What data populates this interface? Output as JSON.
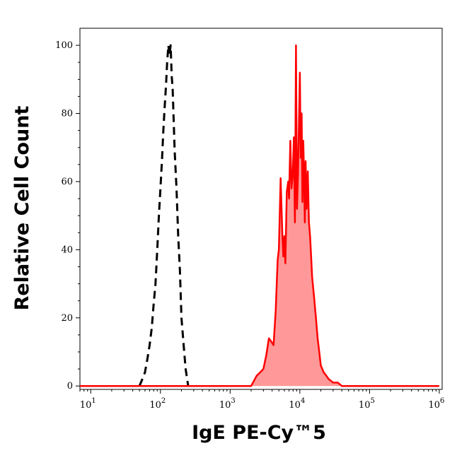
{
  "chart_data": {
    "type": "area",
    "title": "",
    "xlabel": "IgE PE-Cy™5",
    "ylabel": "Relative Cell Count",
    "x_scale": "log",
    "xlim": [
      7,
      1100000
    ],
    "ylim": [
      -1,
      105
    ],
    "grid": false,
    "legend": "none",
    "x_ticks": [
      {
        "base": "10",
        "exp": "1",
        "value": 10
      },
      {
        "base": "10",
        "exp": "2",
        "value": 100
      },
      {
        "base": "10",
        "exp": "3",
        "value": 1000
      },
      {
        "base": "10",
        "exp": "4",
        "value": 10000
      },
      {
        "base": "10",
        "exp": "5",
        "value": 100000
      },
      {
        "base": "10",
        "exp": "6",
        "value": 1000000
      }
    ],
    "y_ticks": [
      "0",
      "20",
      "40",
      "60",
      "80",
      "100"
    ],
    "y_tick_values": [
      0,
      20,
      40,
      60,
      80,
      100
    ],
    "series": [
      {
        "style": "dashed-black",
        "color": "#000000",
        "x": [
          50,
          55,
          60,
          65,
          70,
          75,
          80,
          85,
          90,
          95,
          100,
          105,
          110,
          115,
          120,
          125,
          130,
          135,
          140,
          145,
          150,
          155,
          160,
          170,
          180,
          190,
          200,
          215,
          230,
          250
        ],
        "y": [
          0,
          2,
          4,
          8,
          12,
          17,
          24,
          30,
          40,
          50,
          58,
          66,
          75,
          82,
          88,
          95,
          100,
          97,
          100,
          91,
          87,
          78,
          69,
          58,
          44,
          34,
          20,
          12,
          5,
          0
        ]
      },
      {
        "style": "filled-red",
        "color": "#ff0000",
        "fill": "#ff9999",
        "x": [
          7,
          2000,
          2400,
          2700,
          3000,
          3300,
          3600,
          3900,
          4200,
          4500,
          4800,
          5000,
          5300,
          5600,
          5800,
          6000,
          6200,
          6500,
          6800,
          7000,
          7300,
          7600,
          7900,
          8200,
          8500,
          8800,
          9100,
          9400,
          9700,
          10000,
          10300,
          10600,
          10900,
          11200,
          11500,
          11800,
          12100,
          12500,
          13000,
          13500,
          14000,
          14500,
          15000,
          16000,
          17000,
          18000,
          19000,
          20000,
          22000,
          24000,
          26000,
          30000,
          35000,
          40000,
          50000,
          1000000
        ],
        "y": [
          0,
          0,
          3,
          4,
          5,
          9,
          14,
          13,
          12,
          22,
          37,
          40,
          61,
          45,
          38,
          44,
          36,
          57,
          60,
          55,
          72,
          58,
          62,
          73,
          48,
          100,
          52,
          62,
          77,
          92,
          67,
          80,
          54,
          72,
          62,
          48,
          66,
          52,
          63,
          48,
          44,
          38,
          32,
          26,
          20,
          14,
          10,
          6,
          4,
          3,
          2,
          1,
          1,
          0,
          0,
          0
        ]
      }
    ]
  }
}
